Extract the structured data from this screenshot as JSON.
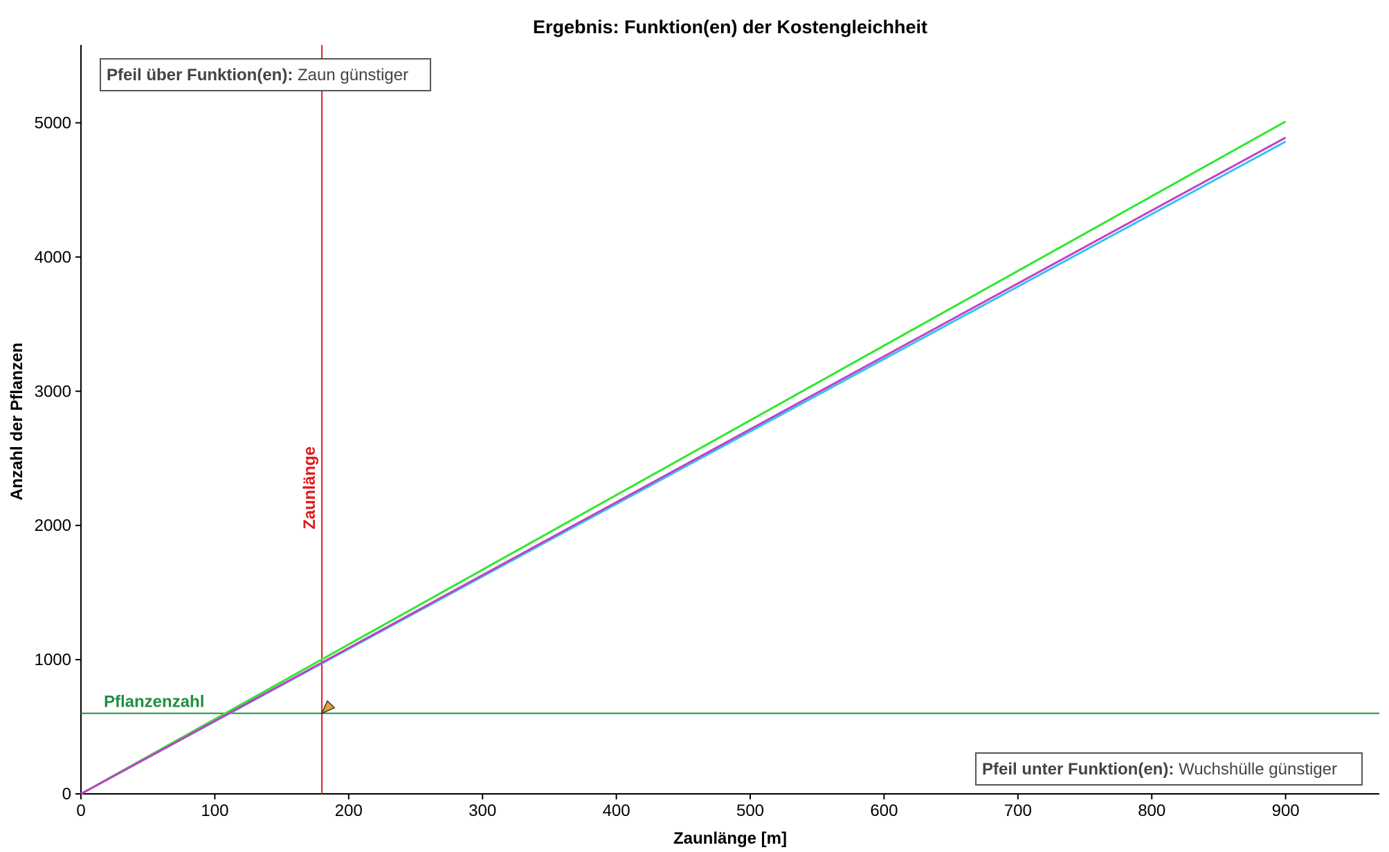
{
  "chart_data": {
    "type": "line",
    "title": "Ergebnis: Funktion(en) der Kostengleichheit",
    "xlabel": "Zaunlänge [m]",
    "ylabel": "Anzahl der Pflanzen",
    "xlim": [
      0,
      970
    ],
    "ylim": [
      0,
      5580
    ],
    "xticks": [
      0,
      100,
      200,
      300,
      400,
      500,
      600,
      700,
      800,
      900
    ],
    "yticks": [
      0,
      1000,
      2000,
      3000,
      4000,
      5000
    ],
    "grid": false,
    "series": [
      {
        "color": "#2fe82f",
        "x": [
          0,
          900
        ],
        "y": [
          0,
          5010
        ]
      },
      {
        "color": "#33c2f2",
        "x": [
          0,
          900
        ],
        "y": [
          0,
          4860
        ]
      },
      {
        "color": "#c43fc4",
        "x": [
          0,
          900
        ],
        "y": [
          0,
          4890
        ]
      }
    ],
    "vline": {
      "x": 180,
      "label": "Zaunlänge",
      "color": "#e01b1b"
    },
    "hline": {
      "y": 600,
      "label": "Pflanzenzahl",
      "color": "#1f8f3f"
    },
    "marker": {
      "x": 180,
      "y": 600,
      "color": "#f0a030"
    },
    "annotations": {
      "top_left": {
        "bold": "Pfeil über Funktion(en):",
        "text": "Zaun günstiger"
      },
      "bottom_right": {
        "bold": "Pfeil unter Funktion(en):",
        "text": "Wuchshülle günstiger"
      }
    }
  }
}
